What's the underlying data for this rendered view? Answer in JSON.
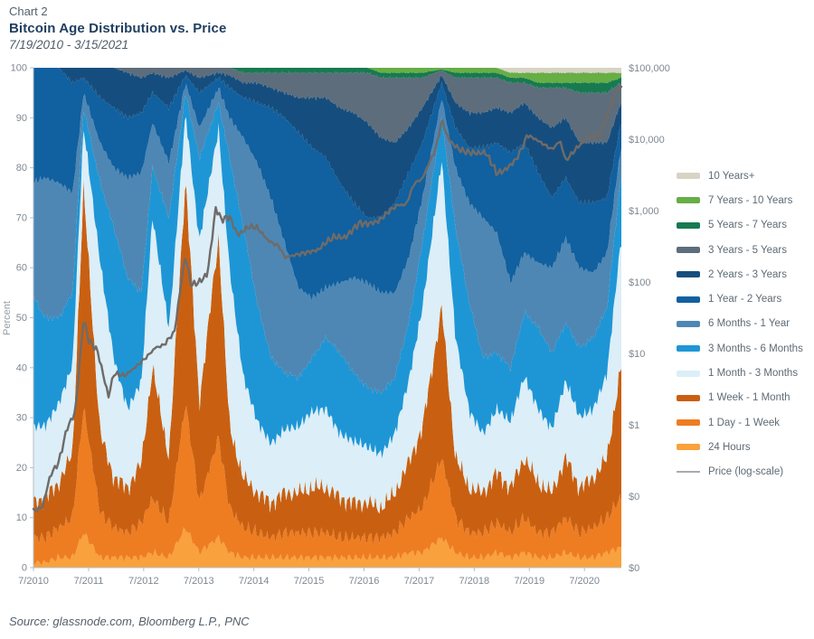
{
  "header": {
    "kicker": "Chart 2",
    "title": "Bitcoin Age Distribution vs. Price",
    "subtitle": "7/19/2010 - 3/15/2021"
  },
  "source": "Source: glassnode.com, Bloomberg L.P., PNC",
  "chart_data": {
    "type": "area",
    "stacked": true,
    "grid": false,
    "legend_position": "right",
    "left_axis": {
      "label": "Percent",
      "min": 0,
      "max": 100,
      "ticks": [
        0,
        10,
        20,
        30,
        40,
        50,
        60,
        70,
        80,
        90,
        100
      ]
    },
    "right_axis": {
      "log": true,
      "min": 0.01,
      "max": 100000,
      "labels": [
        "$100,000",
        "$10,000",
        "$1,000",
        "$100",
        "$10",
        "$1",
        "$0",
        "$0"
      ],
      "values": [
        100000,
        10000,
        1000,
        100,
        10,
        1,
        0.1,
        0.01
      ]
    },
    "x_axis": {
      "range": [
        2010.54,
        2021.21
      ],
      "tick_labels": [
        "7/2010",
        "7/2011",
        "7/2012",
        "7/2013",
        "7/2014",
        "7/2015",
        "7/2016",
        "7/2017",
        "7/2018",
        "7/2019",
        "7/2020"
      ],
      "tick_positions": [
        2010.54,
        2011.54,
        2012.54,
        2013.54,
        2014.54,
        2015.54,
        2016.54,
        2017.54,
        2018.54,
        2019.54,
        2020.54
      ]
    },
    "x": [
      2010.5,
      2010.75,
      2011,
      2011.25,
      2011.45,
      2011.75,
      2012,
      2012.25,
      2012.5,
      2012.7,
      2013,
      2013.3,
      2013.55,
      2013.9,
      2014.1,
      2014.35,
      2014.6,
      2014.85,
      2015.1,
      2015.35,
      2015.6,
      2015.85,
      2016.1,
      2016.35,
      2016.6,
      2016.85,
      2017.1,
      2017.35,
      2017.6,
      2017.95,
      2018.2,
      2018.45,
      2018.7,
      2018.95,
      2019.2,
      2019.45,
      2019.7,
      2019.95,
      2020.2,
      2020.45,
      2020.7,
      2020.95,
      2021.2
    ],
    "series": [
      {
        "name": "24 Hours",
        "color": "#F9A13C",
        "values": [
          1,
          1,
          2,
          2,
          7,
          2,
          2,
          2,
          2,
          3,
          2,
          8,
          3,
          6,
          3,
          2,
          2,
          2,
          2,
          2,
          2,
          2,
          2,
          2,
          2,
          2,
          2,
          3,
          3,
          6,
          3,
          2,
          2,
          3,
          2,
          3,
          2,
          2,
          3,
          2,
          2,
          3,
          4
        ]
      },
      {
        "name": "1 Day - 1 Week",
        "color": "#EE7D22",
        "values": [
          5,
          5,
          6,
          8,
          25,
          9,
          6,
          5,
          7,
          11,
          7,
          25,
          10,
          20,
          9,
          6,
          5,
          4,
          5,
          5,
          5,
          5,
          4,
          4,
          4,
          4,
          5,
          7,
          9,
          16,
          7,
          5,
          5,
          6,
          5,
          7,
          5,
          5,
          7,
          5,
          6,
          7,
          10
        ]
      },
      {
        "name": "1 Week - 1 Month",
        "color": "#C96011",
        "values": [
          7,
          8,
          9,
          13,
          44,
          16,
          10,
          9,
          12,
          26,
          13,
          45,
          20,
          40,
          16,
          10,
          8,
          7,
          8,
          8,
          9,
          9,
          8,
          7,
          7,
          6,
          8,
          11,
          16,
          30,
          12,
          9,
          8,
          10,
          9,
          12,
          10,
          8,
          12,
          9,
          10,
          12,
          26
        ]
      },
      {
        "name": "1 Month - 3 Months",
        "color": "#DCEEF7",
        "values": [
          15,
          14,
          16,
          18,
          12,
          34,
          24,
          16,
          16,
          30,
          26,
          13,
          32,
          22,
          32,
          20,
          14,
          12,
          13,
          13,
          15,
          16,
          13,
          12,
          11,
          11,
          12,
          16,
          24,
          30,
          24,
          15,
          12,
          13,
          13,
          16,
          15,
          13,
          15,
          14,
          14,
          17,
          25
        ]
      },
      {
        "name": "3 Months - 6 Months",
        "color": "#1E96D5",
        "values": [
          27,
          22,
          17,
          14,
          4,
          16,
          26,
          26,
          18,
          10,
          22,
          4,
          17,
          5,
          22,
          30,
          24,
          17,
          11,
          10,
          11,
          14,
          16,
          14,
          12,
          12,
          11,
          12,
          13,
          8,
          22,
          22,
          15,
          11,
          11,
          13,
          16,
          15,
          12,
          14,
          14,
          13,
          13
        ]
      },
      {
        "name": "6 Months - 1 Year",
        "color": "#4E87B4",
        "values": [
          22,
          28,
          27,
          20,
          3,
          8,
          12,
          20,
          24,
          9,
          11,
          2,
          6,
          3,
          8,
          18,
          28,
          32,
          26,
          18,
          12,
          10,
          14,
          19,
          21,
          20,
          17,
          13,
          9,
          4,
          12,
          20,
          28,
          24,
          17,
          12,
          13,
          17,
          17,
          16,
          13,
          11,
          6
        ]
      },
      {
        "name": "1 Year - 2 Years",
        "color": "#11609F",
        "values": [
          23,
          22,
          23,
          22,
          3,
          9,
          12,
          12,
          12,
          6,
          11,
          1.5,
          7,
          2,
          6,
          8,
          12,
          18,
          25,
          31,
          30,
          26,
          20,
          15,
          13,
          15,
          18,
          17,
          11,
          3,
          8,
          11,
          14,
          18,
          26,
          22,
          18,
          14,
          12,
          13,
          14,
          11,
          5
        ]
      },
      {
        "name": "2 Years - 3 Years",
        "color": "#154E7E",
        "values": [
          0,
          0,
          0,
          3,
          2,
          6,
          8,
          9,
          7,
          4,
          6,
          1,
          3,
          1,
          2.5,
          3,
          4,
          4,
          5,
          7,
          10,
          12,
          15,
          18,
          19,
          16,
          12,
          9,
          7,
          1.5,
          5,
          7,
          7,
          7,
          8,
          8,
          11,
          14,
          12,
          12,
          12,
          11,
          4
        ]
      },
      {
        "name": "3 Years - 5 Years",
        "color": "#5D6D7B",
        "values": [
          0,
          0,
          0,
          0,
          0,
          0,
          0,
          1,
          2,
          1,
          2,
          0.5,
          2,
          1,
          1.5,
          2,
          2,
          3,
          4,
          5,
          5,
          5,
          7,
          8,
          10,
          12,
          13,
          10,
          6,
          1,
          5,
          7,
          7,
          6,
          6,
          4,
          6,
          8,
          6,
          10,
          10,
          10,
          4
        ]
      },
      {
        "name": "5 Years - 7 Years",
        "color": "#177A50",
        "values": [
          0,
          0,
          0,
          0,
          0,
          0,
          0,
          0,
          0,
          0,
          0,
          0,
          0,
          0,
          0,
          1,
          1,
          1,
          1,
          1,
          1,
          1,
          1,
          1,
          1,
          1,
          1,
          1,
          1,
          0.2,
          1,
          1,
          1,
          1,
          1,
          1,
          1,
          1,
          1,
          2,
          2,
          2,
          1
        ]
      },
      {
        "name": "7 Years - 10 Years",
        "color": "#67AE45",
        "values": [
          0,
          0,
          0,
          0,
          0,
          0,
          0,
          0,
          0,
          0,
          0,
          0,
          0,
          0,
          0,
          0,
          0,
          0,
          0,
          0,
          0,
          0,
          0,
          0,
          0,
          1,
          1,
          1,
          1,
          0.3,
          1,
          1,
          1,
          1,
          1,
          1,
          2,
          2,
          2,
          2,
          2,
          2,
          1
        ]
      },
      {
        "name": "10 Years+",
        "color": "#D7D4C5",
        "values": [
          0,
          0,
          0,
          0,
          0,
          0,
          0,
          0,
          0,
          0,
          0,
          0,
          0,
          0,
          0,
          0,
          0,
          0,
          0,
          0,
          0,
          0,
          0,
          0,
          0,
          0,
          0,
          0,
          0,
          0,
          0,
          0,
          0,
          0,
          1,
          1,
          1,
          1,
          1,
          1,
          1,
          1,
          1
        ]
      }
    ],
    "price_line": {
      "name": "Price (log-scale)",
      "color": "#6F6B68",
      "legend_color": "#A7ACB1",
      "points": [
        [
          2010.5,
          0.06
        ],
        [
          2010.7,
          0.07
        ],
        [
          2010.85,
          0.2
        ],
        [
          2011.0,
          0.3
        ],
        [
          2011.15,
          0.9
        ],
        [
          2011.3,
          1.5
        ],
        [
          2011.45,
          30
        ],
        [
          2011.55,
          15
        ],
        [
          2011.7,
          11
        ],
        [
          2011.9,
          2.5
        ],
        [
          2012.0,
          5.2
        ],
        [
          2012.2,
          4.9
        ],
        [
          2012.4,
          6.5
        ],
        [
          2012.6,
          9
        ],
        [
          2012.75,
          12
        ],
        [
          2012.9,
          13
        ],
        [
          2013.1,
          20
        ],
        [
          2013.25,
          140
        ],
        [
          2013.3,
          230
        ],
        [
          2013.4,
          90
        ],
        [
          2013.55,
          100
        ],
        [
          2013.7,
          130
        ],
        [
          2013.85,
          1100
        ],
        [
          2013.95,
          750
        ],
        [
          2014.1,
          820
        ],
        [
          2014.25,
          450
        ],
        [
          2014.45,
          600
        ],
        [
          2014.6,
          580
        ],
        [
          2014.8,
          380
        ],
        [
          2015.0,
          315
        ],
        [
          2015.1,
          220
        ],
        [
          2015.3,
          240
        ],
        [
          2015.5,
          260
        ],
        [
          2015.7,
          280
        ],
        [
          2015.85,
          360
        ],
        [
          2016.0,
          430
        ],
        [
          2016.2,
          420
        ],
        [
          2016.45,
          670
        ],
        [
          2016.6,
          650
        ],
        [
          2016.8,
          710
        ],
        [
          2017.0,
          990
        ],
        [
          2017.15,
          1200
        ],
        [
          2017.3,
          1200
        ],
        [
          2017.45,
          2400
        ],
        [
          2017.6,
          2800
        ],
        [
          2017.7,
          4300
        ],
        [
          2017.85,
          7500
        ],
        [
          2017.95,
          19000
        ],
        [
          2018.05,
          11000
        ],
        [
          2018.15,
          8500
        ],
        [
          2018.3,
          7000
        ],
        [
          2018.45,
          6500
        ],
        [
          2018.6,
          6400
        ],
        [
          2018.75,
          6500
        ],
        [
          2018.9,
          4000
        ],
        [
          2018.95,
          3300
        ],
        [
          2019.1,
          3700
        ],
        [
          2019.3,
          5200
        ],
        [
          2019.45,
          8800
        ],
        [
          2019.5,
          11500
        ],
        [
          2019.65,
          10000
        ],
        [
          2019.8,
          8500
        ],
        [
          2019.95,
          7200
        ],
        [
          2020.1,
          9500
        ],
        [
          2020.2,
          5000
        ],
        [
          2020.35,
          6800
        ],
        [
          2020.5,
          9100
        ],
        [
          2020.65,
          10900
        ],
        [
          2020.8,
          11500
        ],
        [
          2020.9,
          16000
        ],
        [
          2021.0,
          29000
        ],
        [
          2021.05,
          33000
        ],
        [
          2021.1,
          47000
        ],
        [
          2021.15,
          48000
        ],
        [
          2021.2,
          57000
        ]
      ]
    },
    "legend": [
      {
        "label": "10 Years+",
        "color": "#D7D4C5",
        "type": "area"
      },
      {
        "label": "7 Years - 10 Years",
        "color": "#67AE45",
        "type": "area"
      },
      {
        "label": "5 Years - 7 Years",
        "color": "#177A50",
        "type": "area"
      },
      {
        "label": "3 Years - 5 Years",
        "color": "#5D6D7B",
        "type": "area"
      },
      {
        "label": "2 Years - 3 Years",
        "color": "#154E7E",
        "type": "area"
      },
      {
        "label": "1 Year - 2 Years",
        "color": "#11609F",
        "type": "area"
      },
      {
        "label": "6 Months - 1 Year",
        "color": "#4E87B4",
        "type": "area"
      },
      {
        "label": "3 Months - 6 Months",
        "color": "#1E96D5",
        "type": "area"
      },
      {
        "label": "1 Month - 3 Months",
        "color": "#DCEEF7",
        "type": "area"
      },
      {
        "label": "1 Week - 1 Month",
        "color": "#C96011",
        "type": "area"
      },
      {
        "label": "1 Day - 1 Week",
        "color": "#EE7D22",
        "type": "area"
      },
      {
        "label": "24 Hours",
        "color": "#F9A13C",
        "type": "area"
      },
      {
        "label": "Price (log-scale)",
        "color": "#A7ACB1",
        "type": "line"
      }
    ]
  }
}
